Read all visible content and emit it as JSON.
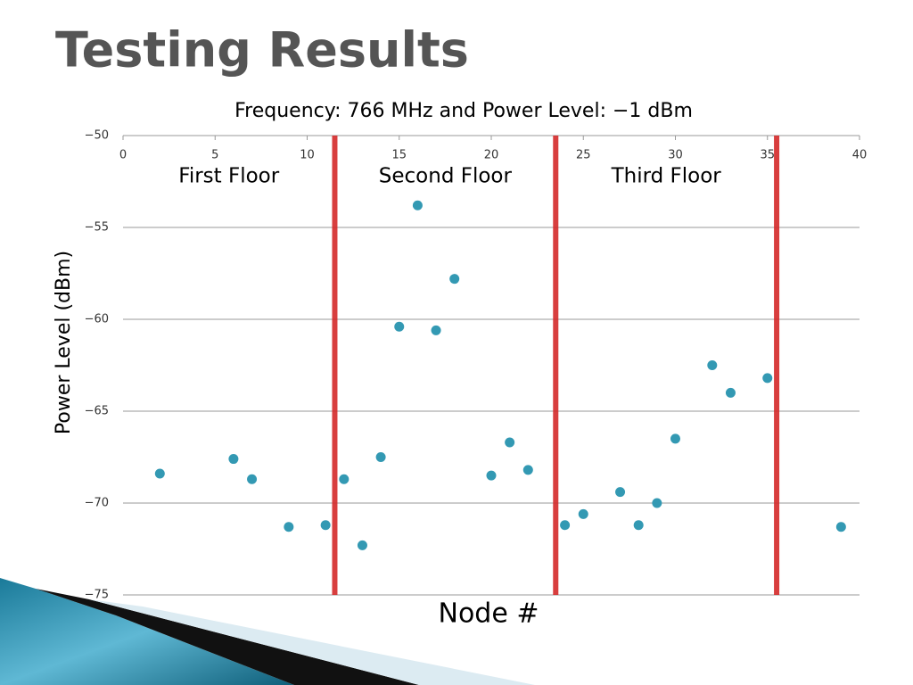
{
  "header": {
    "title": "Testing Results"
  },
  "chart_data": {
    "type": "scatter",
    "title": "Frequency: 766 MHz and Power Level: −1 dBm",
    "x_label": "Node #",
    "y_label": "Power Level (dBm)",
    "series": [
      {
        "color": "#3399b3",
        "x": [
          2,
          6,
          7,
          9,
          11,
          12,
          13,
          14,
          15,
          16,
          17,
          18,
          20,
          21,
          22,
          24,
          25,
          27,
          28,
          29,
          30,
          32,
          33,
          35,
          39
        ],
        "values": [
          -68.4,
          -67.6,
          -68.7,
          -71.3,
          -71.2,
          -68.7,
          -72.3,
          -67.5,
          -60.4,
          -53.8,
          -60.6,
          -57.8,
          -68.5,
          -66.7,
          -68.2,
          -71.2,
          -70.6,
          -69.4,
          -71.2,
          -70.0,
          -66.5,
          -62.5,
          -64.0,
          -63.2,
          -71.3
        ]
      }
    ],
    "xlim": [
      0,
      40
    ],
    "xticks": [
      0,
      5,
      10,
      15,
      20,
      25,
      30,
      35,
      40
    ],
    "ylim": [
      -75,
      -50
    ],
    "yticks": [
      {
        "value": -50,
        "label": "−50"
      },
      {
        "value": -55,
        "label": "−55"
      },
      {
        "value": -60,
        "label": "−60"
      },
      {
        "value": -65,
        "label": "−65"
      },
      {
        "value": -70,
        "label": "−70"
      },
      {
        "value": -75,
        "label": "−75"
      }
    ],
    "grid": true,
    "dividers": [
      11.5,
      23.5,
      35.5
    ],
    "divider_color": "#d42a2a",
    "regions": [
      "First Floor",
      "Second Floor",
      "Third Floor"
    ]
  }
}
